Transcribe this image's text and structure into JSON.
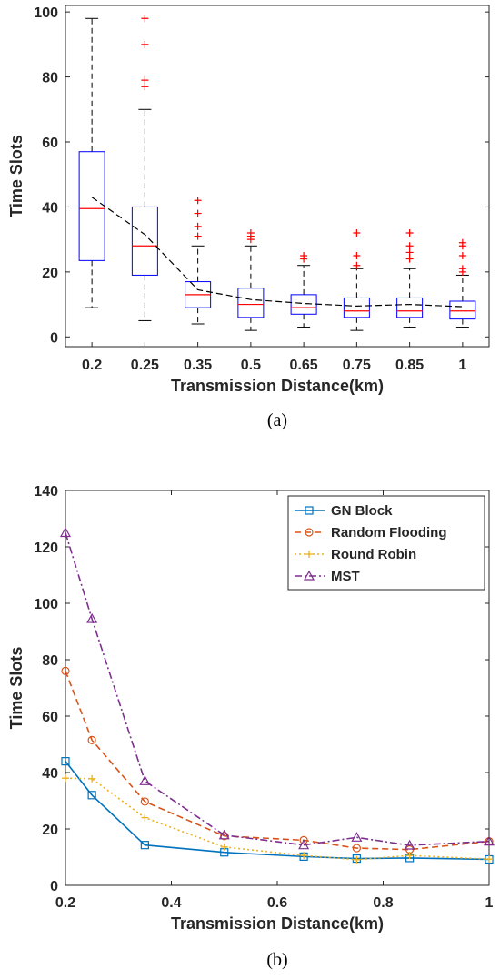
{
  "chart_data": [
    {
      "type": "box",
      "caption": "(a)",
      "xlabel": "Transmission Distance(km)",
      "ylabel": "Time Slots",
      "categories": [
        "0.2",
        "0.25",
        "0.35",
        "0.5",
        "0.65",
        "0.75",
        "0.85",
        "1"
      ],
      "ylim": [
        -3,
        102
      ],
      "yticks": [
        0,
        20,
        40,
        60,
        80,
        100
      ],
      "colors": {
        "box": "#0000ff",
        "median": "#ff0000",
        "whisker": "#000000",
        "outlier": "#ff0000",
        "trend": "#000000"
      },
      "boxes": [
        {
          "q1": 23.5,
          "median": 39.5,
          "q3": 57,
          "whisker_low": 9,
          "whisker_high": 98,
          "outliers": []
        },
        {
          "q1": 19,
          "median": 28,
          "q3": 40,
          "whisker_low": 5,
          "whisker_high": 70,
          "outliers": [
            77,
            79,
            90,
            98
          ]
        },
        {
          "q1": 9,
          "median": 13,
          "q3": 17,
          "whisker_low": 4,
          "whisker_high": 28,
          "outliers": [
            31,
            34,
            38,
            42
          ]
        },
        {
          "q1": 6,
          "median": 10,
          "q3": 15,
          "whisker_low": 2,
          "whisker_high": 28,
          "outliers": [
            30,
            31,
            32
          ]
        },
        {
          "q1": 7,
          "median": 9,
          "q3": 13,
          "whisker_low": 3,
          "whisker_high": 22,
          "outliers": [
            24,
            25
          ]
        },
        {
          "q1": 6,
          "median": 8,
          "q3": 12,
          "whisker_low": 2,
          "whisker_high": 21,
          "outliers": [
            22,
            25,
            32
          ]
        },
        {
          "q1": 6,
          "median": 8,
          "q3": 12,
          "whisker_low": 3,
          "whisker_high": 21,
          "outliers": [
            24,
            26,
            28,
            32
          ]
        },
        {
          "q1": 5.5,
          "median": 8,
          "q3": 11,
          "whisker_low": 3,
          "whisker_high": 19,
          "outliers": [
            20,
            21,
            25,
            28,
            29
          ]
        }
      ],
      "trend": [
        43,
        31.5,
        14.5,
        11.5,
        10.3,
        9.5,
        10,
        9.3
      ]
    },
    {
      "type": "line",
      "caption": "(b)",
      "xlabel": "Transmission Distance(km)",
      "ylabel": "Time Slots",
      "xlim": [
        0.2,
        1
      ],
      "ylim": [
        0,
        140
      ],
      "xticks": [
        0.2,
        0.4,
        0.6,
        0.8,
        1
      ],
      "xtick_labels": [
        "0.2",
        "0.4",
        "0.6",
        "0.8",
        "1"
      ],
      "yticks": [
        0,
        20,
        40,
        60,
        80,
        100,
        120,
        140
      ],
      "legend_position": "top-right",
      "x": [
        0.2,
        0.25,
        0.35,
        0.5,
        0.65,
        0.75,
        0.85,
        1
      ],
      "series": [
        {
          "name": "GN Block",
          "color": "#0072bd",
          "dash": "",
          "marker": "square",
          "values": [
            44,
            32,
            14.3,
            11.7,
            10.2,
            9.5,
            9.7,
            9.2
          ]
        },
        {
          "name": "Random Flooding",
          "color": "#d95319",
          "dash": "7,4",
          "marker": "circle",
          "values": [
            76,
            51.5,
            29.7,
            17.5,
            16,
            13.2,
            12.7,
            15.6
          ]
        },
        {
          "name": "Round Robin",
          "color": "#edb120",
          "dash": "2,3",
          "marker": "plus",
          "values": [
            38,
            37.8,
            24,
            13.6,
            10.6,
            9.1,
            10.6,
            9.3
          ]
        },
        {
          "name": "MST",
          "color": "#7e2f8e",
          "dash": "8,3,2,3",
          "marker": "triangle",
          "values": [
            125,
            94.5,
            37,
            17.8,
            14.3,
            17,
            14.2,
            15.6
          ]
        }
      ]
    }
  ]
}
